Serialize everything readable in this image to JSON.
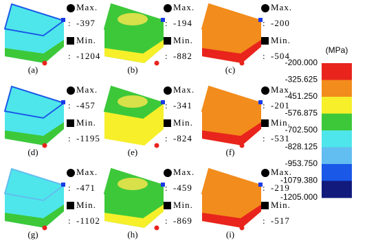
{
  "panels": [
    {
      "label": "(a)",
      "max_label": "Max.",
      "max": "-397",
      "min_label": "Min.",
      "min": "-1204"
    },
    {
      "label": "(b)",
      "max_label": "Max.",
      "max": "-194",
      "min_label": "Min.",
      "min": "-882"
    },
    {
      "label": "(c)",
      "max_label": "Max.",
      "max": "-200",
      "min_label": "Min.",
      "min": "-504"
    },
    {
      "label": "(d)",
      "max_label": "Max.",
      "max": "-457",
      "min_label": "Min.",
      "min": "-1195"
    },
    {
      "label": "(e)",
      "max_label": "Max.",
      "max": "-341",
      "min_label": "Min.",
      "min": "-824"
    },
    {
      "label": "(f)",
      "max_label": "Max.",
      "max": "-201",
      "min_label": "Min.",
      "min": "-531"
    },
    {
      "label": "(g)",
      "max_label": "Max.",
      "max": "-471",
      "min_label": "Min.",
      "min": "-1102"
    },
    {
      "label": "(h)",
      "max_label": "Max.",
      "max": "-459",
      "min_label": "Min.",
      "min": "-869"
    },
    {
      "label": "(i)",
      "max_label": "Max.",
      "max": "-219",
      "min_label": "Min.",
      "min": "-517"
    }
  ],
  "colorbar": {
    "unit": "(MPa)",
    "ticks": [
      "-200.000",
      "-325.625",
      "-451.250",
      "-576.875",
      "-702.500",
      "-828.125",
      "-953.750",
      "-1079.380",
      "-1205.000"
    ],
    "colors": [
      "#e8241d",
      "#f28c1c",
      "#f6ef2a",
      "#3dc83a",
      "#4ee6ea",
      "#62bdf0",
      "#1a58e8",
      "#121a7c"
    ]
  }
}
